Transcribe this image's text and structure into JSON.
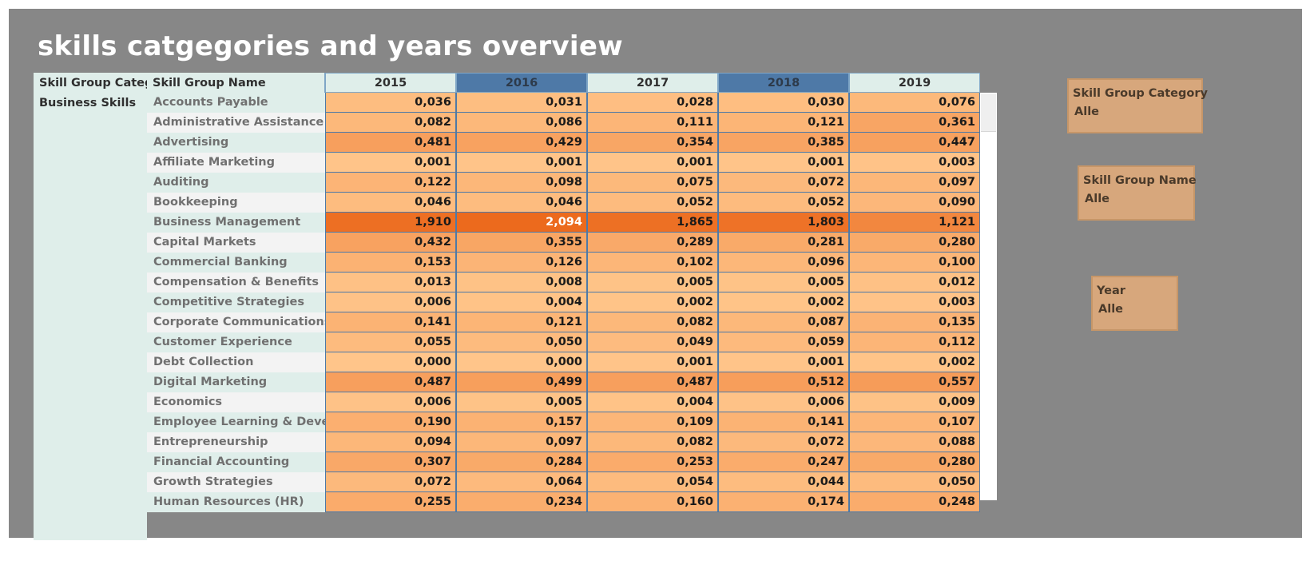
{
  "title": "skills catgegories and years overview",
  "headers": {
    "category": "Skill Group Categ..",
    "name": "Skill Group Name",
    "years": [
      "2015",
      "2016",
      "2017",
      "2018",
      "2019"
    ]
  },
  "category": "Business Skills",
  "rows": [
    {
      "name": "Accounts Payable",
      "values": [
        "0,036",
        "0,031",
        "0,028",
        "0,030",
        "0,076"
      ]
    },
    {
      "name": "Administrative Assistance",
      "values": [
        "0,082",
        "0,086",
        "0,111",
        "0,121",
        "0,361"
      ]
    },
    {
      "name": "Advertising",
      "values": [
        "0,481",
        "0,429",
        "0,354",
        "0,385",
        "0,447"
      ]
    },
    {
      "name": "Affiliate Marketing",
      "values": [
        "0,001",
        "0,001",
        "0,001",
        "0,001",
        "0,003"
      ]
    },
    {
      "name": "Auditing",
      "values": [
        "0,122",
        "0,098",
        "0,075",
        "0,072",
        "0,097"
      ]
    },
    {
      "name": "Bookkeeping",
      "values": [
        "0,046",
        "0,046",
        "0,052",
        "0,052",
        "0,090"
      ]
    },
    {
      "name": "Business Management",
      "values": [
        "1,910",
        "2,094",
        "1,865",
        "1,803",
        "1,121"
      ]
    },
    {
      "name": "Capital Markets",
      "values": [
        "0,432",
        "0,355",
        "0,289",
        "0,281",
        "0,280"
      ]
    },
    {
      "name": "Commercial Banking",
      "values": [
        "0,153",
        "0,126",
        "0,102",
        "0,096",
        "0,100"
      ]
    },
    {
      "name": "Compensation & Benefits",
      "values": [
        "0,013",
        "0,008",
        "0,005",
        "0,005",
        "0,012"
      ]
    },
    {
      "name": "Competitive Strategies",
      "values": [
        "0,006",
        "0,004",
        "0,002",
        "0,002",
        "0,003"
      ]
    },
    {
      "name": "Corporate Communications",
      "values": [
        "0,141",
        "0,121",
        "0,082",
        "0,087",
        "0,135"
      ]
    },
    {
      "name": "Customer Experience",
      "values": [
        "0,055",
        "0,050",
        "0,049",
        "0,059",
        "0,112"
      ]
    },
    {
      "name": "Debt Collection",
      "values": [
        "0,000",
        "0,000",
        "0,001",
        "0,001",
        "0,002"
      ]
    },
    {
      "name": "Digital Marketing",
      "values": [
        "0,487",
        "0,499",
        "0,487",
        "0,512",
        "0,557"
      ]
    },
    {
      "name": "Economics",
      "values": [
        "0,006",
        "0,005",
        "0,004",
        "0,006",
        "0,009"
      ]
    },
    {
      "name": "Employee Learning & Develop..",
      "values": [
        "0,190",
        "0,157",
        "0,109",
        "0,141",
        "0,107"
      ]
    },
    {
      "name": "Entrepreneurship",
      "values": [
        "0,094",
        "0,097",
        "0,082",
        "0,072",
        "0,088"
      ]
    },
    {
      "name": "Financial Accounting",
      "values": [
        "0,307",
        "0,284",
        "0,253",
        "0,247",
        "0,280"
      ]
    },
    {
      "name": "Growth Strategies",
      "values": [
        "0,072",
        "0,064",
        "0,054",
        "0,044",
        "0,050"
      ]
    },
    {
      "name": "Human Resources (HR)",
      "values": [
        "0,255",
        "0,234",
        "0,160",
        "0,174",
        "0,248"
      ]
    }
  ],
  "filters": {
    "category": {
      "title": "Skill Group Category",
      "value": "Alle"
    },
    "name": {
      "title": "Skill Group Name",
      "value": "Alle"
    },
    "year": {
      "title": "Year",
      "value": "Alle"
    }
  },
  "colors": {
    "heat_low": "#ffc58a",
    "heat_high": "#ec6a1d",
    "header_highlight": "#4e79a7",
    "background": "#878787",
    "filter_box": "#d7a77c"
  }
}
